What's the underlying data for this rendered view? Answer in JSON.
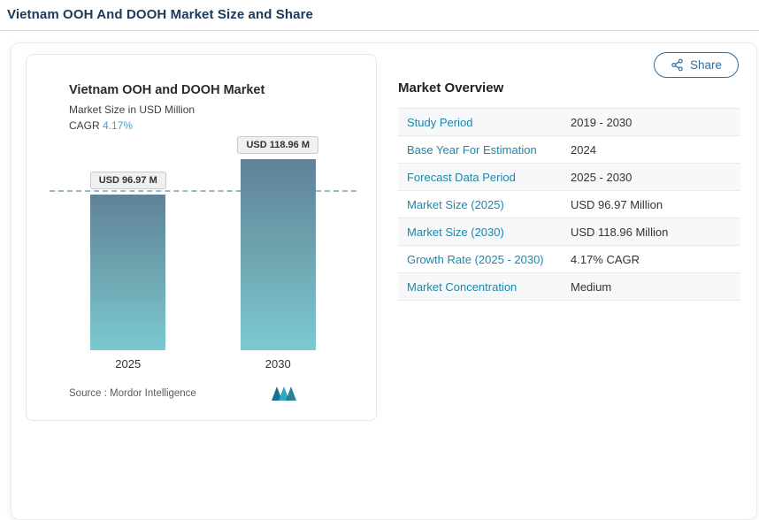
{
  "page": {
    "title": "Vietnam OOH And DOOH Market Size and Share"
  },
  "share": {
    "label": "Share"
  },
  "chart": {
    "title": "Vietnam OOH and DOOH Market",
    "subtitle": "Market Size in USD Million",
    "cagr_label": "CAGR",
    "cagr_value": "4.17%",
    "source_label": "Source :",
    "source_value": "Mordor Intelligence"
  },
  "chart_data": {
    "type": "bar",
    "title": "Vietnam OOH and DOOH Market",
    "ylabel": "Market Size in USD Million",
    "categories": [
      "2025",
      "2030"
    ],
    "values": [
      96.97,
      118.96
    ],
    "value_labels": [
      "USD 96.97 M",
      "USD 118.96 M"
    ],
    "ylim": [
      0,
      135
    ],
    "grid": false,
    "legend": false,
    "annotations": [
      "CAGR 4.17%",
      "dashed reference line at 2025 value"
    ]
  },
  "overview": {
    "heading": "Market Overview",
    "rows": [
      {
        "label": "Study Period",
        "value": "2019 - 2030"
      },
      {
        "label": "Base Year For Estimation",
        "value": "2024"
      },
      {
        "label": "Forecast Data Period",
        "value": "2025 - 2030"
      },
      {
        "label": "Market Size (2025)",
        "value": "USD 96.97 Million"
      },
      {
        "label": "Market Size (2030)",
        "value": "USD 118.96 Million"
      },
      {
        "label": "Growth Rate (2025 - 2030)",
        "value": "4.17% CAGR"
      },
      {
        "label": "Market Concentration",
        "value": "Medium"
      }
    ]
  },
  "colors": {
    "title_navy": "#1b3a57",
    "link_teal": "#1c87aa",
    "cagr_teal": "#45a5bc",
    "bar_gradient_top": "#5f8296",
    "bar_gradient_bottom": "#7cc9d1",
    "share_blue": "#2f6fa7"
  }
}
